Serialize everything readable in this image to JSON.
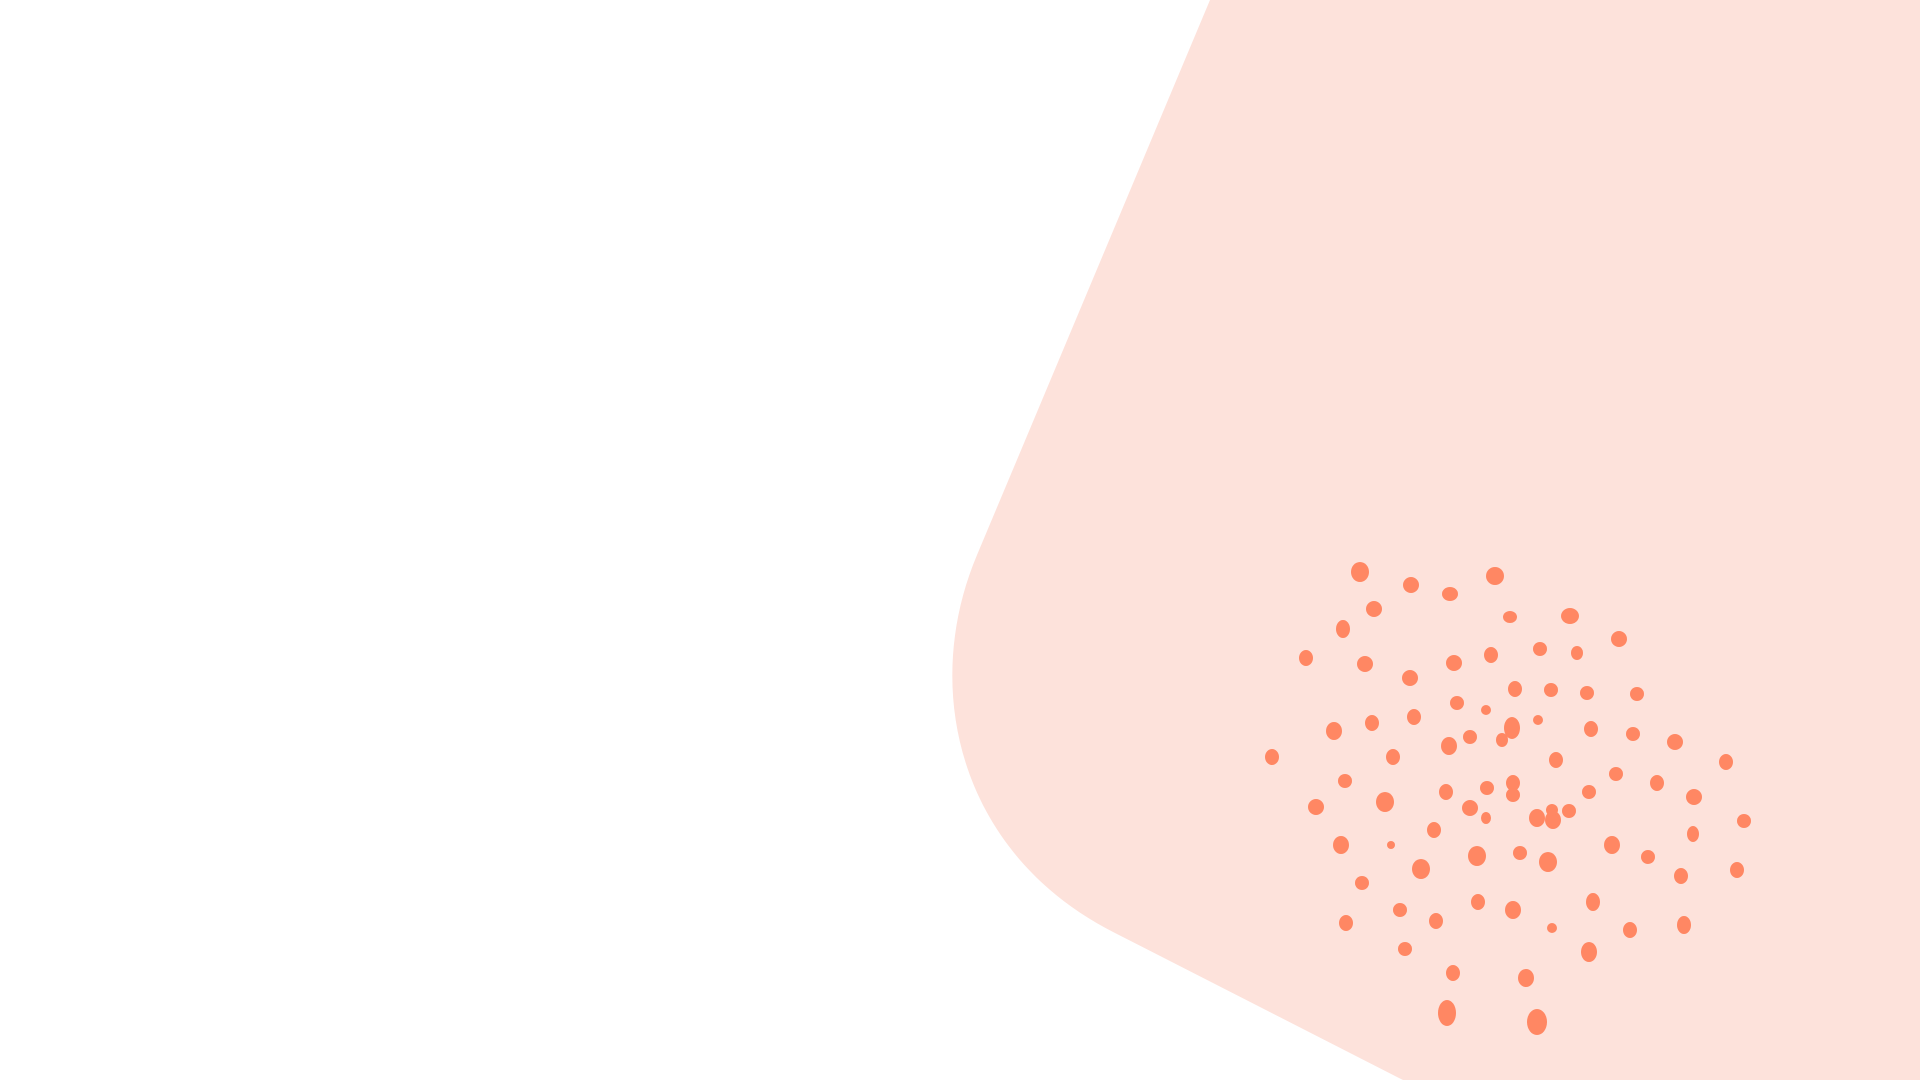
{
  "colors": {
    "background": "#ffffff",
    "panel_fill": "#fde2db",
    "dot_fill": "#ff8763"
  }
}
